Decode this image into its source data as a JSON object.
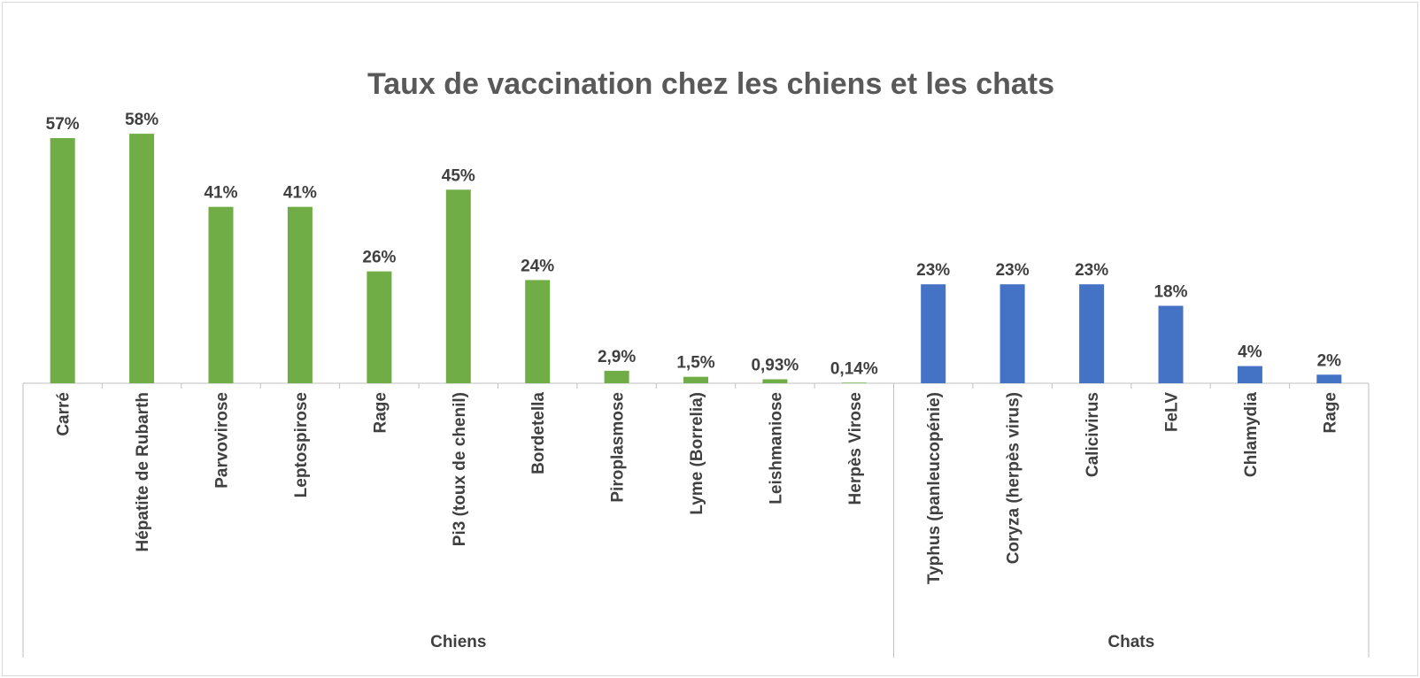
{
  "chart_data": {
    "type": "bar",
    "title": "Taux de vaccination chez les chiens et les chats",
    "xlabel": "",
    "ylabel": "",
    "ylim": [
      0,
      60
    ],
    "grid": false,
    "groups": [
      {
        "name": "Chiens",
        "color": "#70ad47",
        "categories": [
          "Carré",
          "Hépatite de Rubarth",
          "Parvovirose",
          "Leptospirose",
          "Rage",
          "Pi3 (toux de chenil)",
          "Bordetella",
          "Piroplasmose",
          "Lyme (Borrelia)",
          "Leishmaniose",
          "Herpès Virose"
        ],
        "values": [
          57,
          58,
          41,
          41,
          26,
          45,
          24,
          2.9,
          1.5,
          0.93,
          0.14
        ],
        "labels": [
          "57%",
          "58%",
          "41%",
          "41%",
          "26%",
          "45%",
          "24%",
          "2,9%",
          "1,5%",
          "0,93%",
          "0,14%"
        ]
      },
      {
        "name": "Chats",
        "color": "#4472c4",
        "categories": [
          "Typhus (panleucopénie)",
          "Coryza (herpès virus)",
          "Calicivirus",
          "FeLV",
          "Chlamydia",
          "Rage"
        ],
        "values": [
          23,
          23,
          23,
          18,
          4,
          2
        ],
        "labels": [
          "23%",
          "23%",
          "23%",
          "18%",
          "4%",
          "2%"
        ]
      }
    ]
  }
}
